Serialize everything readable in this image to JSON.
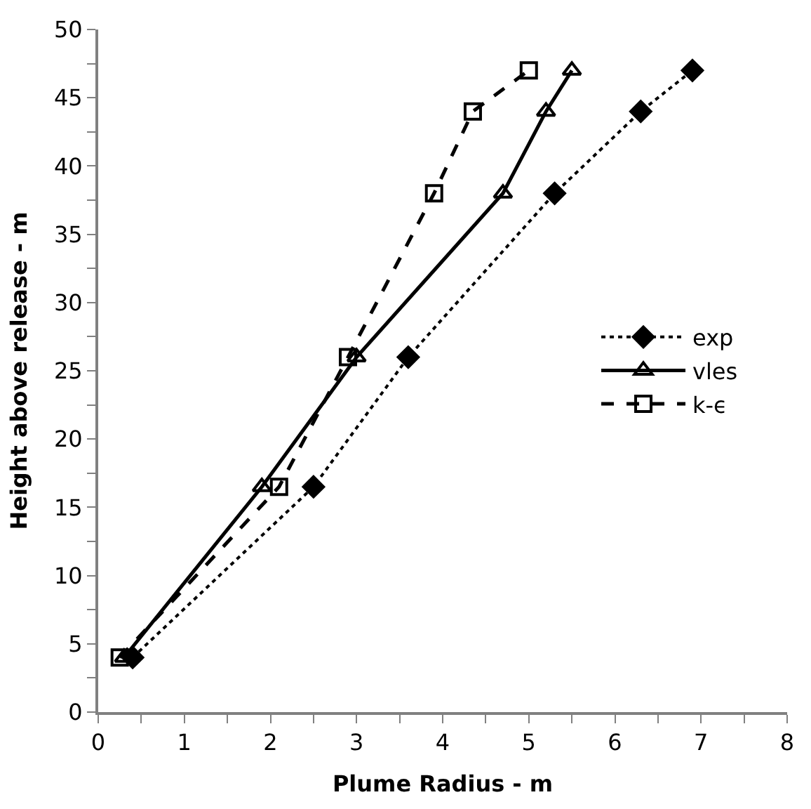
{
  "chart_data": {
    "type": "line",
    "xlabel": "Plume Radius - m",
    "ylabel": "Height above release - m",
    "xlim": [
      0,
      8
    ],
    "xticks": [
      0,
      1,
      2,
      3,
      4,
      5,
      6,
      7,
      8
    ],
    "ylim": [
      0,
      50
    ],
    "yticks": [
      0,
      5,
      10,
      15,
      20,
      25,
      30,
      35,
      40,
      45,
      50
    ],
    "legend": "right",
    "series": [
      {
        "name": "exp",
        "color": "#000000",
        "marker": "diamond",
        "line_style": "dotted",
        "x": [
          0.4,
          2.5,
          3.6,
          5.3,
          6.3,
          6.9
        ],
        "values": [
          4,
          16.5,
          26,
          38,
          44,
          47
        ]
      },
      {
        "name": "vles",
        "color": "#000000",
        "marker": "triangle",
        "line_style": "solid",
        "x": [
          0.3,
          1.9,
          3.0,
          4.7,
          5.2,
          5.5
        ],
        "values": [
          4,
          16.5,
          26,
          38,
          44,
          47
        ]
      },
      {
        "name": "k-ϵ",
        "color": "#000000",
        "marker": "square",
        "line_style": "dashed",
        "x": [
          0.25,
          2.1,
          2.9,
          3.9,
          4.35,
          5.0
        ],
        "values": [
          4,
          16.5,
          26,
          38,
          44,
          47
        ]
      }
    ]
  }
}
